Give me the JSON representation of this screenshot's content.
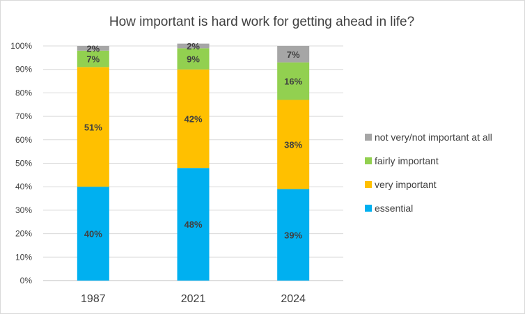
{
  "chart_data": {
    "type": "bar",
    "stacked": true,
    "title": "How important is hard work for getting ahead in life?",
    "categories": [
      "1987",
      "2021",
      "2024"
    ],
    "series": [
      {
        "name": "essential",
        "values": [
          40,
          48,
          39
        ],
        "labels": [
          "40%",
          "48%",
          "39%"
        ],
        "color": "#00b0f0"
      },
      {
        "name": "very important",
        "values": [
          51,
          42,
          38
        ],
        "labels": [
          "51%",
          "42%",
          "38%"
        ],
        "color": "#ffc000"
      },
      {
        "name": "fairly important",
        "values": [
          7,
          9,
          16
        ],
        "labels": [
          "7%",
          "9%",
          "16%"
        ],
        "color": "#92d050"
      },
      {
        "name": "not very/not important at all",
        "values": [
          2,
          2,
          7
        ],
        "labels": [
          "2%",
          "2%",
          "7%"
        ],
        "color": "#a6a6a6"
      }
    ],
    "y_ticks": [
      "0%",
      "10%",
      "20%",
      "30%",
      "40%",
      "50%",
      "60%",
      "70%",
      "80%",
      "90%",
      "100%"
    ],
    "ylim": [
      0,
      100
    ],
    "grid": true,
    "legend_position": "right"
  }
}
